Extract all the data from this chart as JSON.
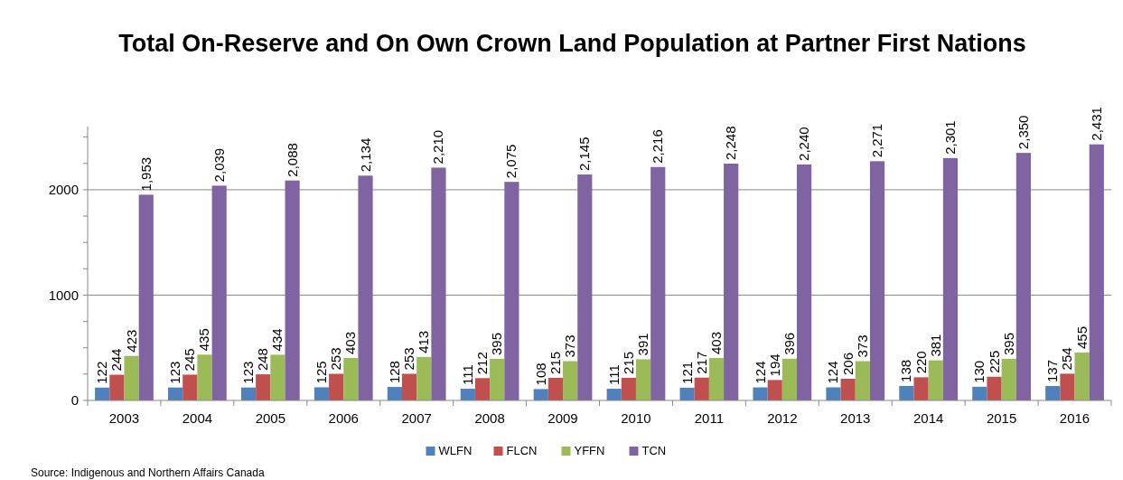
{
  "chart_data": {
    "type": "bar",
    "title": "Total On-Reserve and On Own Crown Land Population at Partner First Nations",
    "categories": [
      "2003",
      "2004",
      "2005",
      "2006",
      "2007",
      "2008",
      "2009",
      "2010",
      "2011",
      "2012",
      "2013",
      "2014",
      "2015",
      "2016"
    ],
    "series": [
      {
        "name": "WLFN",
        "color": "#4f81bd",
        "values": [
          122,
          123,
          123,
          125,
          128,
          111,
          108,
          111,
          121,
          124,
          124,
          138,
          130,
          137
        ],
        "value_labels": [
          "122",
          "123",
          "123",
          "125",
          "128",
          "111",
          "108",
          "111",
          "121",
          "124",
          "124",
          "138",
          "130",
          "137"
        ]
      },
      {
        "name": "FLCN",
        "color": "#c0504d",
        "values": [
          244,
          245,
          248,
          253,
          253,
          212,
          215,
          215,
          217,
          194,
          206,
          220,
          225,
          254
        ],
        "value_labels": [
          "244",
          "245",
          "248",
          "253",
          "253",
          "212",
          "215",
          "215",
          "217",
          "194",
          "206",
          "220",
          "225",
          "254"
        ]
      },
      {
        "name": "YFFN",
        "color": "#9bbb59",
        "values": [
          423,
          435,
          434,
          403,
          413,
          395,
          373,
          391,
          403,
          396,
          373,
          381,
          395,
          455
        ],
        "value_labels": [
          "423",
          "435",
          "434",
          "403",
          "413",
          "395",
          "373",
          "391",
          "403",
          "396",
          "373",
          "381",
          "395",
          "455"
        ]
      },
      {
        "name": "TCN",
        "color": "#8064a2",
        "values": [
          1953,
          2039,
          2088,
          2134,
          2210,
          2075,
          2145,
          2216,
          2248,
          2240,
          2271,
          2301,
          2350,
          2431
        ],
        "value_labels": [
          "1,953",
          "2,039",
          "2,088",
          "2,134",
          "2,210",
          "2,075",
          "2,145",
          "2,216",
          "2,248",
          "2,240",
          "2,271",
          "2,301",
          "2,350",
          "2,431"
        ]
      }
    ],
    "ylim": [
      0,
      2600
    ],
    "yticks": [
      0,
      {
        "value": 250,
        "label": null
      },
      {
        "value": 500,
        "label": null
      },
      {
        "value": 750,
        "label": null
      },
      1000,
      {
        "value": 1250,
        "label": null
      },
      {
        "value": 1500,
        "label": null
      },
      {
        "value": 1750,
        "label": null
      },
      2000,
      {
        "value": 2250,
        "label": null
      },
      {
        "value": 2500,
        "label": null
      }
    ],
    "grid": "y",
    "legend": "bottom",
    "annotations": [
      "Source: Indigenous and Northern Affairs Canada"
    ]
  }
}
